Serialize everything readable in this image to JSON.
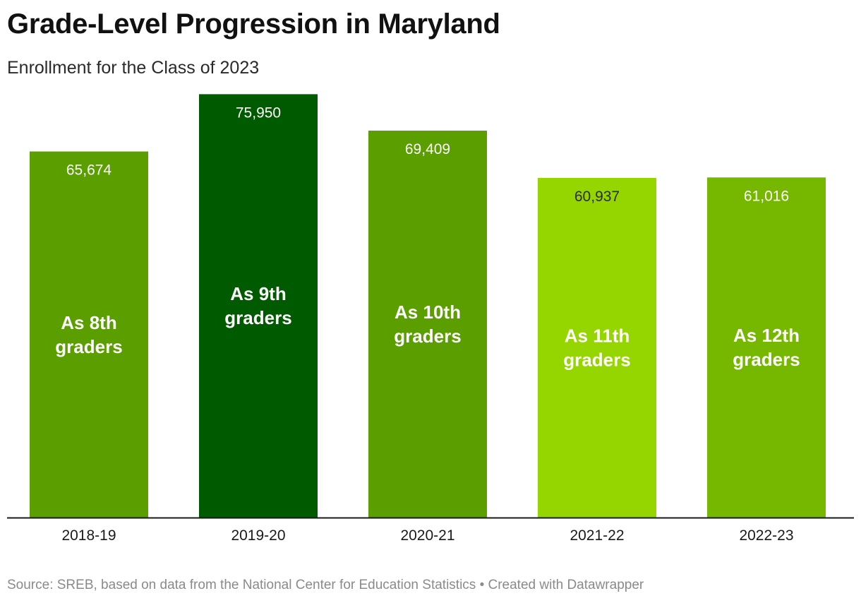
{
  "title": "Grade-Level Progression in Maryland",
  "subtitle": "Enrollment for the Class of 2023",
  "source": "Source: SREB, based on data from the National Center for Education Statistics • Created with Datawrapper",
  "chart_data": {
    "type": "bar",
    "title": "Grade-Level Progression in Maryland",
    "subtitle": "Enrollment for the Class of 2023",
    "xlabel": "",
    "ylabel": "",
    "ylim": [
      0,
      76000
    ],
    "grid": false,
    "categories": [
      "2018-19",
      "2019-20",
      "2020-21",
      "2021-22",
      "2022-23"
    ],
    "values": [
      65674,
      75950,
      69409,
      60937,
      61016
    ],
    "value_labels": [
      "65,674",
      "75,950",
      "69,409",
      "60,937",
      "61,016"
    ],
    "bar_labels": [
      [
        "As 8th",
        "graders"
      ],
      [
        "As 9th",
        "graders"
      ],
      [
        "As 10th",
        "graders"
      ],
      [
        "As 11th",
        "graders"
      ],
      [
        "As 12th",
        "graders"
      ]
    ],
    "colors": [
      "#5a9e00",
      "#005a00",
      "#5a9e00",
      "#96d600",
      "#76b800"
    ],
    "dark_value_text": [
      false,
      false,
      false,
      true,
      false
    ]
  }
}
